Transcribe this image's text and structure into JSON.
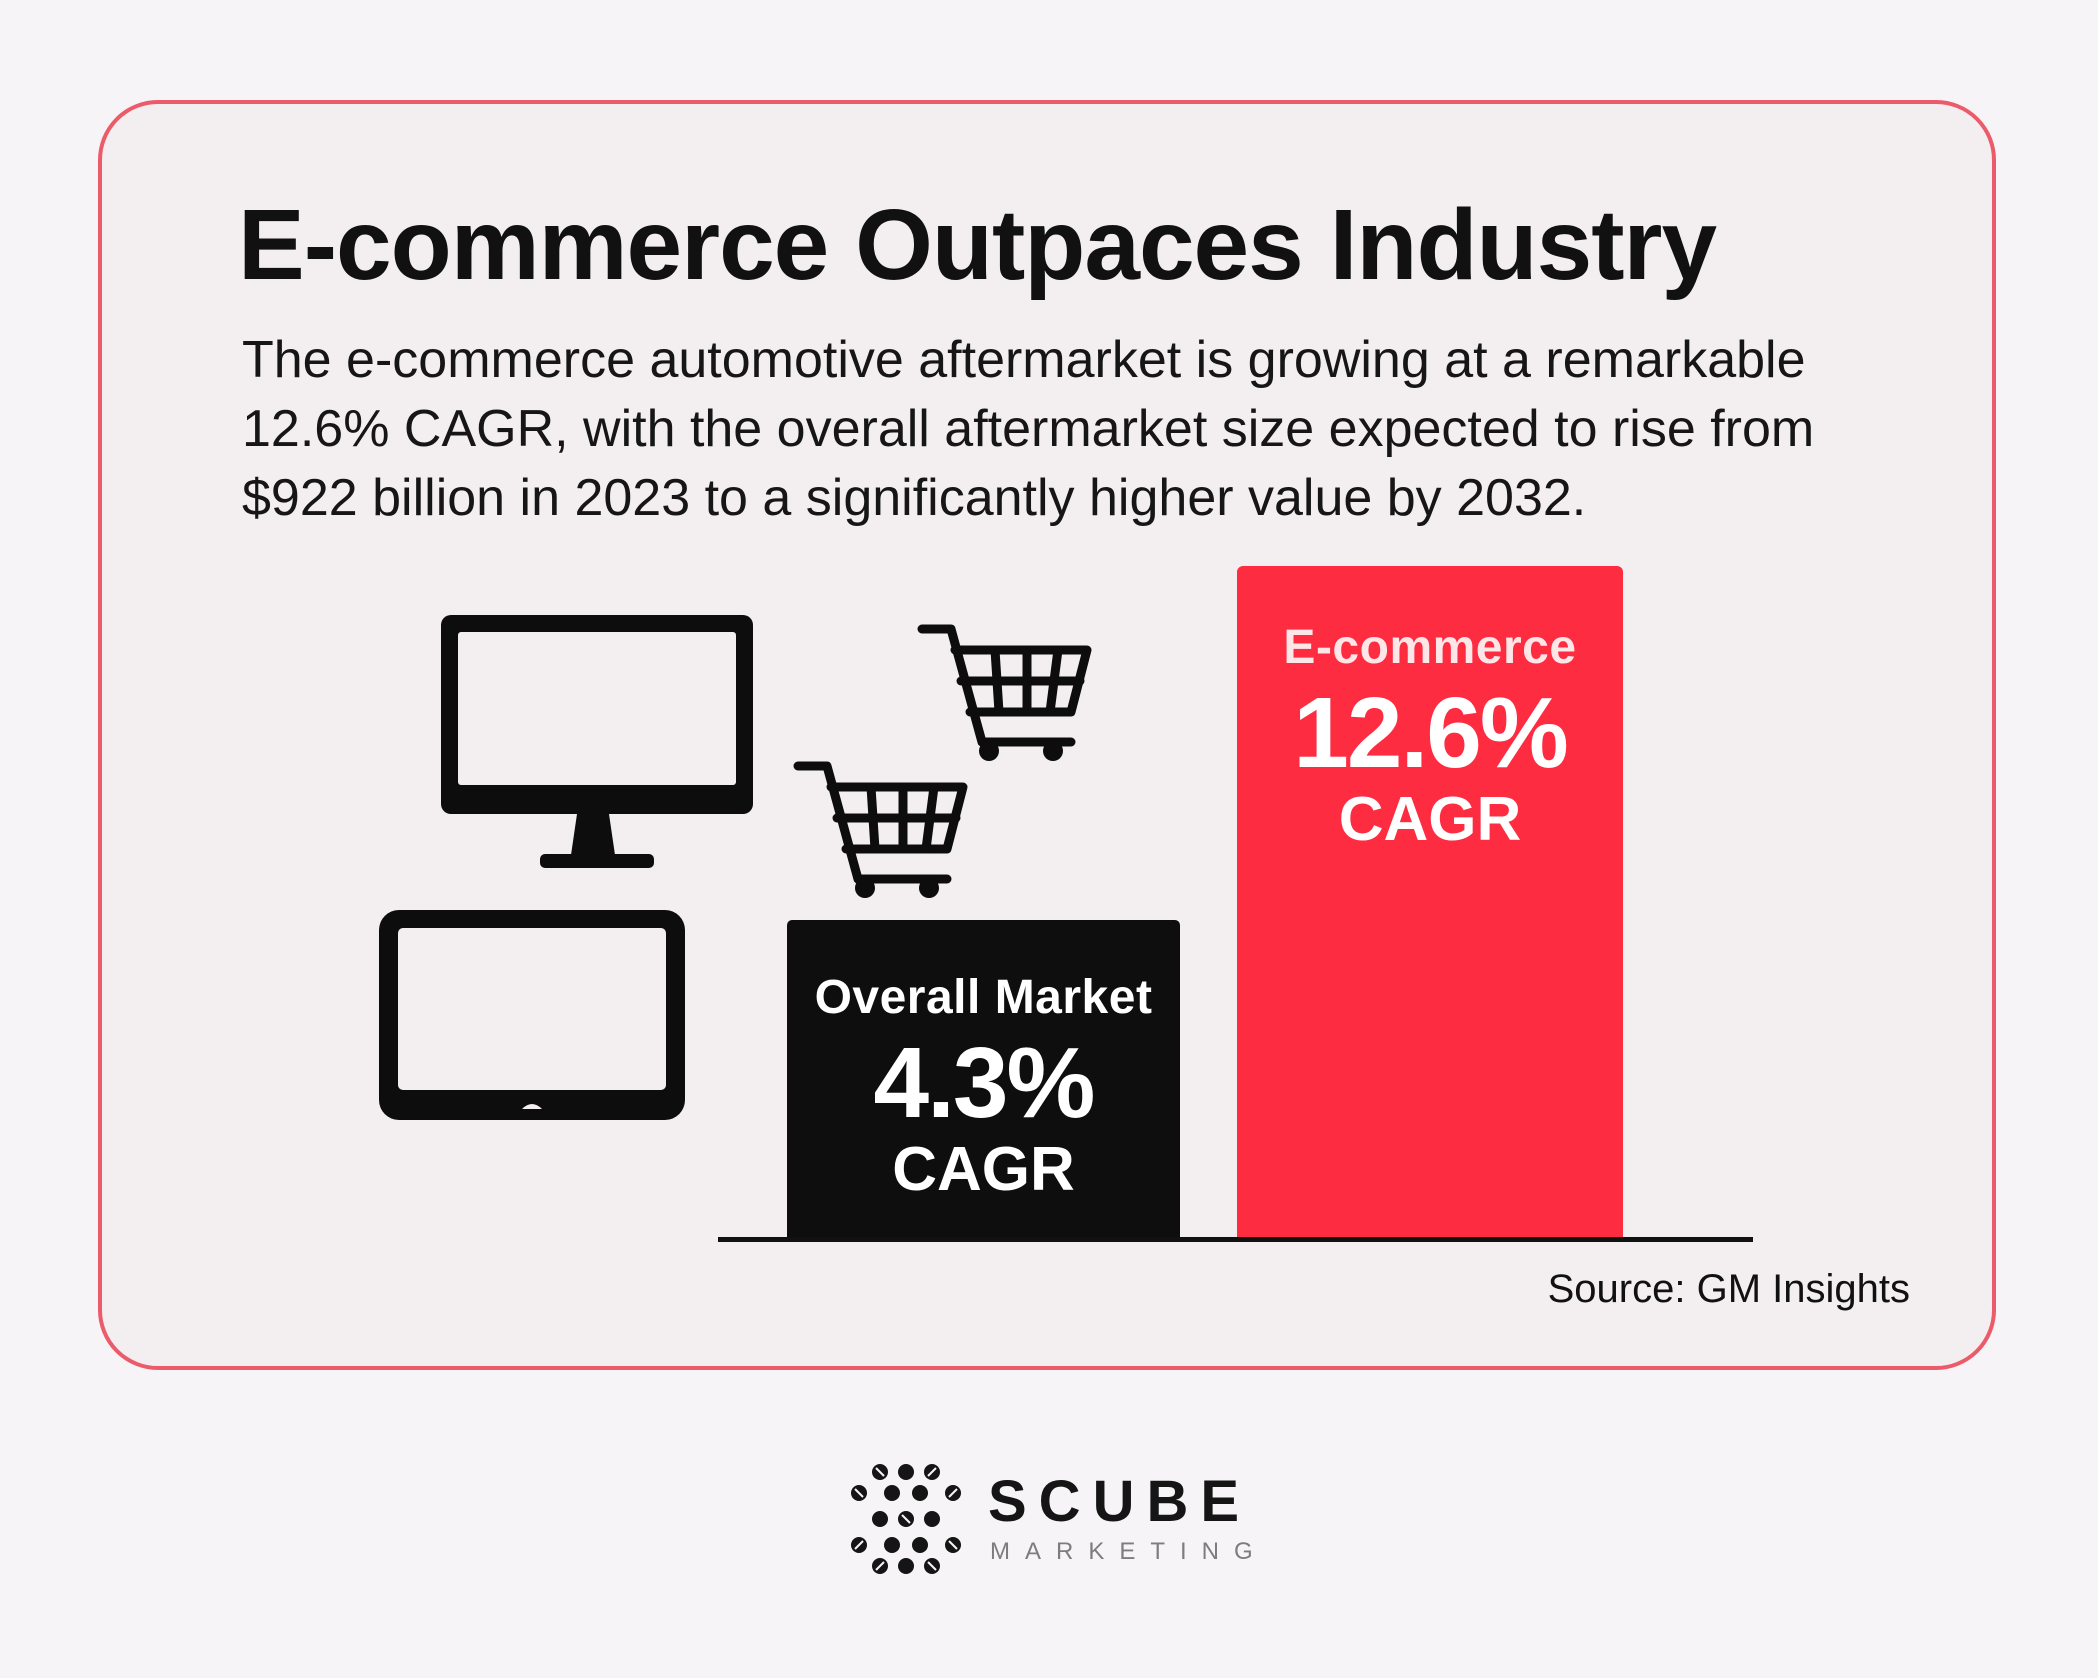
{
  "title": "E-commerce Outpaces Industry",
  "description": "The e-commerce automotive aftermarket is growing at a remarkable 12.6% CAGR, with the overall aftermarket size expected to rise from $922 billion in 2023 to a significantly higher value by 2032.",
  "source": "Source: GM Insights",
  "icons": [
    "monitor-icon",
    "tablet-icon",
    "shopping-cart-icon",
    "shopping-cart-icon"
  ],
  "colors": {
    "background": "#f6f4f7",
    "card": "#f3eff1",
    "card_border": "#ec5b6a",
    "overall_bar": "#0e0e0e",
    "ecommerce_bar": "#fe2c41"
  },
  "chart_data": {
    "type": "bar",
    "categories": [
      "Overall Market",
      "E-commerce"
    ],
    "values": [
      4.3,
      12.6
    ],
    "value_labels": [
      "4.3%",
      "12.6%"
    ],
    "unit": "CAGR",
    "grid": false
  },
  "brand": {
    "name": "SCUBE",
    "tagline": "MARKETING"
  }
}
